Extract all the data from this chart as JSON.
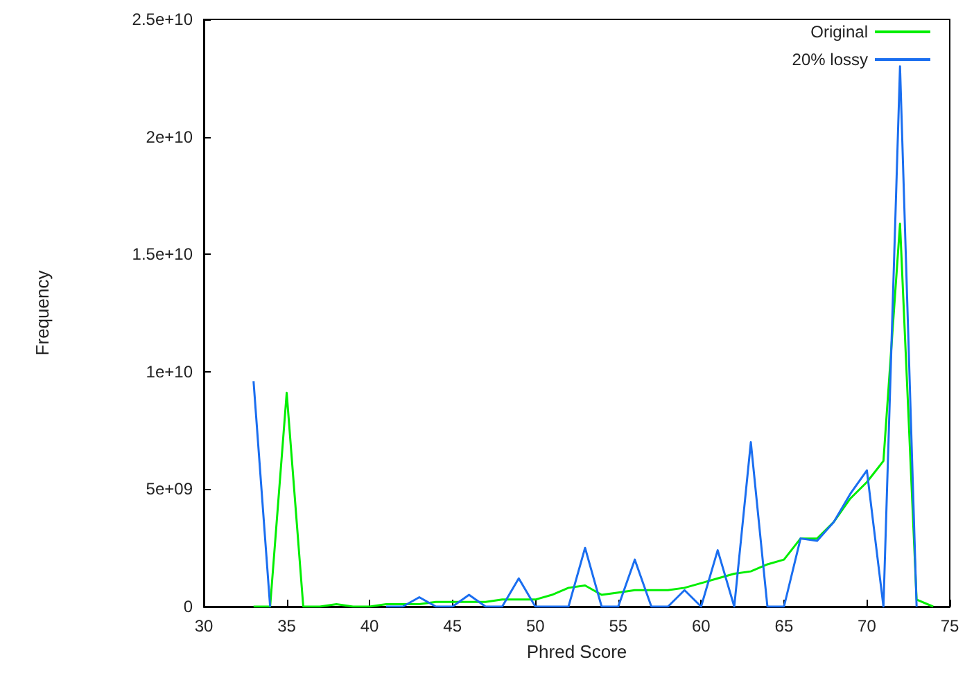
{
  "chart_data": {
    "type": "line",
    "xlabel": "Phred Score",
    "ylabel": "Frequency",
    "x": [
      33,
      34,
      35,
      36,
      37,
      38,
      39,
      40,
      41,
      42,
      43,
      44,
      45,
      46,
      47,
      48,
      49,
      50,
      51,
      52,
      53,
      54,
      55,
      56,
      57,
      58,
      59,
      60,
      61,
      62,
      63,
      64,
      65,
      66,
      67,
      68,
      69,
      70,
      71,
      72,
      73,
      74
    ],
    "series": [
      {
        "name": "Original",
        "color": "#00ee00",
        "values": [
          0,
          0,
          9100000000,
          0,
          0,
          100000000,
          0,
          0,
          100000000,
          100000000,
          100000000,
          200000000,
          200000000,
          200000000,
          200000000,
          300000000,
          300000000,
          300000000,
          500000000,
          800000000,
          900000000,
          500000000,
          600000000,
          700000000,
          700000000,
          700000000,
          800000000,
          1000000000,
          1200000000,
          1400000000,
          1500000000,
          1800000000,
          2000000000,
          2900000000,
          2900000000,
          3600000000,
          4600000000,
          5300000000,
          6200000000,
          16300000000,
          300000000,
          0
        ]
      },
      {
        "name": "20% lossy",
        "color": "#1a6ef0",
        "values": [
          9600000000,
          0,
          null,
          null,
          null,
          null,
          null,
          null,
          0,
          0,
          400000000,
          0,
          0,
          500000000,
          0,
          0,
          1200000000,
          0,
          0,
          0,
          2500000000,
          0,
          0,
          2000000000,
          0,
          0,
          700000000,
          0,
          2400000000,
          0,
          7000000000,
          0,
          0,
          2900000000,
          2800000000,
          3600000000,
          4800000000,
          5800000000,
          0,
          23000000000,
          0,
          null
        ]
      }
    ],
    "xlim": [
      30,
      75
    ],
    "xticks": [
      30,
      35,
      40,
      45,
      50,
      55,
      60,
      65,
      70,
      75
    ],
    "ylim": [
      0,
      25000000000
    ],
    "yticks": [
      0,
      {
        "value": 5000000000,
        "label": "5e+09"
      },
      {
        "value": 10000000000,
        "label": "1e+10"
      },
      {
        "value": 15000000000,
        "label": "1.5e+10"
      },
      {
        "value": 20000000000,
        "label": "2e+10"
      },
      {
        "value": 25000000000,
        "label": "2.5e+10"
      }
    ],
    "legend": "top right",
    "grid": false
  }
}
